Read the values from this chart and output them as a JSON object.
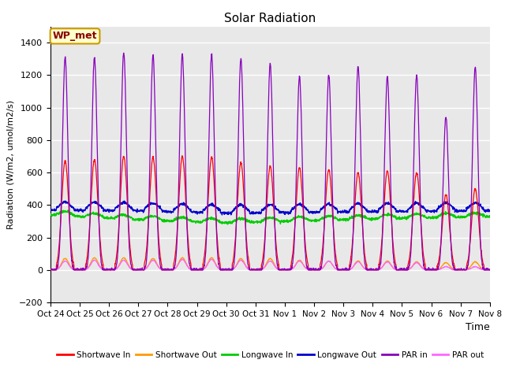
{
  "title": "Solar Radiation",
  "ylabel": "Radiation (W/m2, umol/m2/s)",
  "xlabel": "Time",
  "ylim": [
    -200,
    1500
  ],
  "yticks": [
    -200,
    0,
    200,
    400,
    600,
    800,
    1000,
    1200,
    1400
  ],
  "xlim": [
    0,
    15
  ],
  "xtick_labels": [
    "Oct 24",
    "Oct 25",
    "Oct 26",
    "Oct 27",
    "Oct 28",
    "Oct 29",
    "Oct 30",
    "Oct 31",
    "Nov 1",
    "Nov 2",
    "Nov 3",
    "Nov 4",
    "Nov 5",
    "Nov 6",
    "Nov 7",
    "Nov 8"
  ],
  "bg_color": "#e8e8e8",
  "grid_color": "white",
  "annotation_text": "WP_met",
  "annotation_bg": "#ffffcc",
  "annotation_border": "#cc9900",
  "colors": {
    "shortwave_in": "#ff0000",
    "shortwave_out": "#ff9900",
    "longwave_in": "#00cc00",
    "longwave_out": "#0000cc",
    "par_in": "#8800bb",
    "par_out": "#ff66ff"
  },
  "legend_labels": [
    "Shortwave In",
    "Shortwave Out",
    "Longwave In",
    "Longwave Out",
    "PAR in",
    "PAR out"
  ],
  "n_days": 15,
  "pts_per_day": 144,
  "sw_in_peaks": [
    670,
    680,
    700,
    695,
    700,
    695,
    660,
    640,
    630,
    620,
    600,
    610,
    600,
    465,
    500
  ],
  "sw_out_peaks": [
    70,
    75,
    75,
    70,
    75,
    75,
    70,
    70,
    60,
    55,
    55,
    55,
    50,
    45,
    50
  ],
  "par_in_peaks": [
    1310,
    1310,
    1340,
    1325,
    1330,
    1325,
    1305,
    1270,
    1190,
    1200,
    1255,
    1190,
    1200,
    940,
    1250
  ],
  "par_out_peaks": [
    55,
    60,
    60,
    60,
    65,
    65,
    60,
    55,
    55,
    55,
    50,
    50,
    45,
    20,
    20
  ]
}
